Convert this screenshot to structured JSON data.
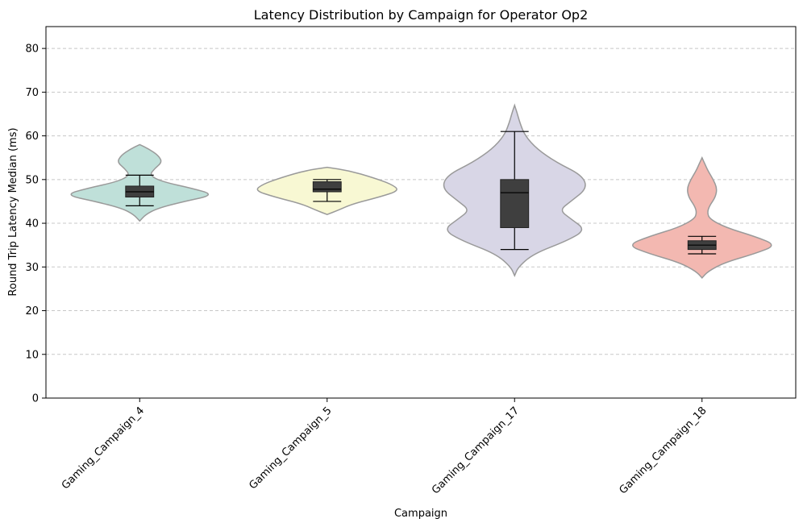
{
  "chart_data": {
    "type": "violin",
    "title": "Latency Distribution by Campaign for Operator Op2",
    "xlabel": "Campaign",
    "ylabel": "Round Trip Latency Median (ms)",
    "ylim": [
      0,
      85
    ],
    "yticks": [
      0,
      10,
      20,
      30,
      40,
      50,
      60,
      70,
      80
    ],
    "grid": "y, dashed",
    "categories": [
      "Gaming_Campaign_4",
      "Gaming_Campaign_5",
      "Gaming_Campaign_17",
      "Gaming_Campaign_18"
    ],
    "series": [
      {
        "category": "Gaming_Campaign_4",
        "color": "#bfe0d9",
        "box": {
          "whisker_low": 44,
          "q1": 46,
          "median": 47.2,
          "q3": 48.5,
          "whisker_high": 51
        },
        "density": [
          [
            40.5,
            0
          ],
          [
            42,
            0.08
          ],
          [
            43.5,
            0.25
          ],
          [
            45,
            0.6
          ],
          [
            46.5,
            1.0
          ],
          [
            48,
            0.7
          ],
          [
            49.5,
            0.3
          ],
          [
            51,
            0.13
          ],
          [
            52.5,
            0.2
          ],
          [
            54,
            0.3
          ],
          [
            55.5,
            0.25
          ],
          [
            57,
            0.12
          ],
          [
            58,
            0
          ]
        ]
      },
      {
        "category": "Gaming_Campaign_5",
        "color": "#f8f8d3",
        "box": {
          "whisker_low": 45,
          "q1": 47.2,
          "median": 47.8,
          "q3": 49.5,
          "whisker_high": 50
        },
        "density": [
          [
            42,
            0
          ],
          [
            43,
            0.15
          ],
          [
            44.5,
            0.35
          ],
          [
            46,
            0.7
          ],
          [
            47.5,
            0.97
          ],
          [
            49,
            0.85
          ],
          [
            50.5,
            0.6
          ],
          [
            52,
            0.3
          ],
          [
            52.8,
            0
          ]
        ]
      },
      {
        "category": "Gaming_Campaign_17",
        "color": "#d8d6e6",
        "box": {
          "whisker_low": 34,
          "q1": 39,
          "median": 47,
          "q3": 50,
          "whisker_high": 61
        },
        "density": [
          [
            28,
            0
          ],
          [
            30,
            0.05
          ],
          [
            33,
            0.25
          ],
          [
            36,
            0.7
          ],
          [
            38.5,
            0.95
          ],
          [
            41,
            0.75
          ],
          [
            43,
            0.6
          ],
          [
            45,
            0.75
          ],
          [
            48,
            0.97
          ],
          [
            51,
            0.9
          ],
          [
            54,
            0.55
          ],
          [
            57,
            0.3
          ],
          [
            60,
            0.14
          ],
          [
            63,
            0.07
          ],
          [
            65.5,
            0.03
          ],
          [
            67,
            0
          ]
        ]
      },
      {
        "category": "Gaming_Campaign_18",
        "color": "#f3b8b1",
        "box": {
          "whisker_low": 33,
          "q1": 34,
          "median": 35,
          "q3": 36,
          "whisker_high": 37
        },
        "density": [
          [
            27.5,
            0
          ],
          [
            29,
            0.08
          ],
          [
            31,
            0.3
          ],
          [
            33,
            0.7
          ],
          [
            35,
            1.0
          ],
          [
            37,
            0.7
          ],
          [
            39,
            0.32
          ],
          [
            41,
            0.1
          ],
          [
            42.5,
            0.07
          ],
          [
            44,
            0.1
          ],
          [
            46,
            0.18
          ],
          [
            48,
            0.2
          ],
          [
            50,
            0.15
          ],
          [
            52,
            0.08
          ],
          [
            53.5,
            0.04
          ],
          [
            55,
            0
          ]
        ]
      }
    ]
  }
}
